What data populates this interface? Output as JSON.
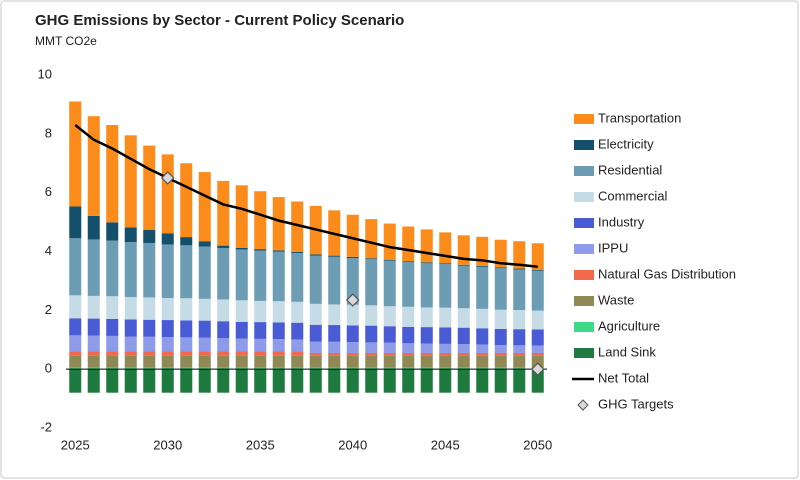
{
  "chart_data": {
    "type": "bar",
    "stacked": true,
    "title": "GHG Emissions by Sector - Current Policy Scenario",
    "subtitle": "MMT CO2e",
    "x": [
      2025,
      2026,
      2027,
      2028,
      2029,
      2030,
      2031,
      2032,
      2033,
      2034,
      2035,
      2036,
      2037,
      2038,
      2039,
      2040,
      2041,
      2042,
      2043,
      2044,
      2045,
      2046,
      2047,
      2048,
      2049,
      2050
    ],
    "xlim": [
      2024.5,
      2050.5
    ],
    "xticks": [
      2025,
      2030,
      2035,
      2040,
      2045,
      2050
    ],
    "ylim": [
      -2,
      10
    ],
    "yticks": [
      -2,
      0,
      2,
      4,
      6,
      8,
      10
    ],
    "grid": false,
    "legend": "right",
    "series": [
      {
        "name": "Transportation",
        "color": "#fb8c1c",
        "values": [
          3.57,
          3.39,
          3.31,
          3.13,
          2.86,
          2.68,
          2.51,
          2.35,
          2.2,
          2.13,
          1.97,
          1.81,
          1.71,
          1.65,
          1.54,
          1.43,
          1.33,
          1.23,
          1.18,
          1.12,
          1.05,
          1.0,
          0.99,
          0.94,
          0.93,
          0.9
        ]
      },
      {
        "name": "Electricity",
        "color": "#14506b",
        "values": [
          1.08,
          0.8,
          0.62,
          0.5,
          0.45,
          0.38,
          0.28,
          0.18,
          0.08,
          0.05,
          0.05,
          0.04,
          0.04,
          0.04,
          0.04,
          0.04,
          0.03,
          0.03,
          0.03,
          0.03,
          0.03,
          0.03,
          0.03,
          0.03,
          0.03,
          0.03
        ]
      },
      {
        "name": "Residential",
        "color": "#6c9db5",
        "values": [
          1.94,
          1.92,
          1.89,
          1.87,
          1.85,
          1.82,
          1.8,
          1.78,
          1.75,
          1.73,
          1.71,
          1.69,
          1.66,
          1.64,
          1.62,
          1.59,
          1.57,
          1.55,
          1.52,
          1.5,
          1.48,
          1.45,
          1.43,
          1.41,
          1.38,
          1.36
        ]
      },
      {
        "name": "Commercial",
        "color": "#c5dbe6",
        "values": [
          0.78,
          0.77,
          0.77,
          0.76,
          0.76,
          0.75,
          0.75,
          0.74,
          0.74,
          0.73,
          0.72,
          0.72,
          0.71,
          0.71,
          0.7,
          0.7,
          0.69,
          0.68,
          0.68,
          0.67,
          0.67,
          0.66,
          0.66,
          0.65,
          0.65,
          0.64
        ]
      },
      {
        "name": "Industry",
        "color": "#4a5bd6",
        "values": [
          0.58,
          0.58,
          0.58,
          0.58,
          0.58,
          0.58,
          0.58,
          0.58,
          0.58,
          0.57,
          0.57,
          0.57,
          0.57,
          0.57,
          0.57,
          0.57,
          0.57,
          0.56,
          0.56,
          0.56,
          0.56,
          0.56,
          0.55,
          0.55,
          0.55,
          0.55
        ]
      },
      {
        "name": "IPPU",
        "color": "#8e9be8",
        "values": [
          0.55,
          0.54,
          0.53,
          0.51,
          0.5,
          0.49,
          0.48,
          0.47,
          0.45,
          0.44,
          0.43,
          0.42,
          0.41,
          0.39,
          0.38,
          0.37,
          0.36,
          0.35,
          0.33,
          0.32,
          0.31,
          0.3,
          0.29,
          0.27,
          0.26,
          0.25
        ]
      },
      {
        "name": "Natural Gas Distribution",
        "color": "#f26a4b",
        "values": [
          0.15,
          0.15,
          0.15,
          0.15,
          0.15,
          0.15,
          0.15,
          0.15,
          0.15,
          0.15,
          0.15,
          0.15,
          0.15,
          0.1,
          0.1,
          0.1,
          0.1,
          0.1,
          0.1,
          0.1,
          0.1,
          0.1,
          0.1,
          0.1,
          0.1,
          0.1
        ]
      },
      {
        "name": "Waste",
        "color": "#8f8a55",
        "values": [
          0.4,
          0.4,
          0.4,
          0.4,
          0.4,
          0.4,
          0.4,
          0.4,
          0.4,
          0.4,
          0.4,
          0.4,
          0.4,
          0.4,
          0.4,
          0.4,
          0.4,
          0.4,
          0.4,
          0.4,
          0.4,
          0.4,
          0.4,
          0.4,
          0.4,
          0.4
        ]
      },
      {
        "name": "Agriculture",
        "color": "#3fd98a",
        "values": [
          0.05,
          0.05,
          0.05,
          0.05,
          0.05,
          0.05,
          0.05,
          0.05,
          0.05,
          0.05,
          0.05,
          0.05,
          0.05,
          0.05,
          0.05,
          0.05,
          0.05,
          0.05,
          0.05,
          0.05,
          0.05,
          0.05,
          0.05,
          0.05,
          0.05,
          0.05
        ]
      },
      {
        "name": "Land Sink",
        "color": "#1e7a3e",
        "values": [
          -0.8,
          -0.8,
          -0.8,
          -0.8,
          -0.8,
          -0.8,
          -0.8,
          -0.8,
          -0.8,
          -0.8,
          -0.8,
          -0.8,
          -0.8,
          -0.8,
          -0.8,
          -0.8,
          -0.8,
          -0.8,
          -0.8,
          -0.8,
          -0.8,
          -0.8,
          -0.8,
          -0.8,
          -0.8,
          -0.8
        ]
      },
      {
        "name": "Net Total",
        "type": "line",
        "color": "#000000",
        "values": [
          8.3,
          7.8,
          7.5,
          7.15,
          6.8,
          6.5,
          6.2,
          5.9,
          5.6,
          5.45,
          5.25,
          5.05,
          4.9,
          4.75,
          4.6,
          4.45,
          4.3,
          4.15,
          4.05,
          3.95,
          3.85,
          3.75,
          3.7,
          3.6,
          3.55,
          3.48
        ]
      },
      {
        "name": "GHG Targets",
        "type": "scatter",
        "color": "#d9d9d9",
        "x": [
          2030,
          2040,
          2050
        ],
        "values": [
          6.5,
          2.35,
          0
        ]
      }
    ]
  }
}
